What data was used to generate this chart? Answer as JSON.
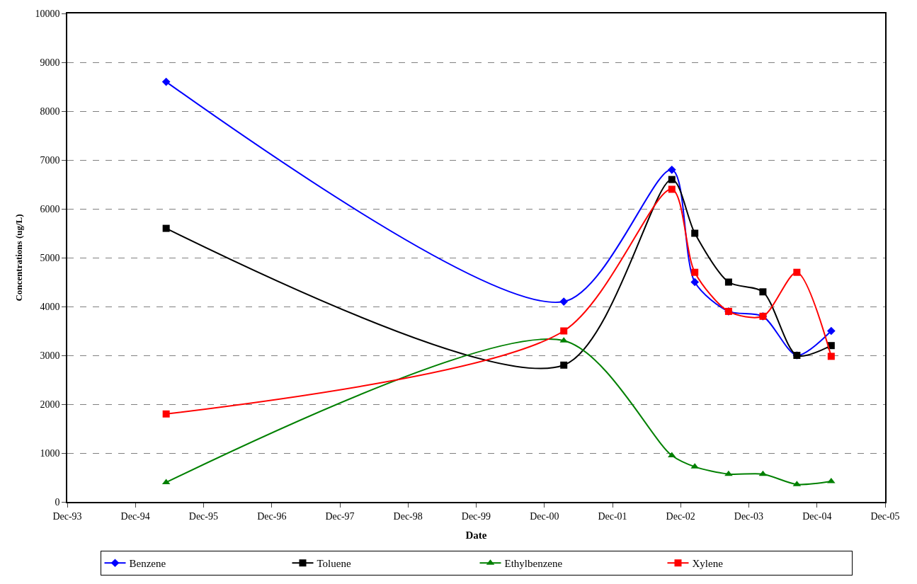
{
  "chart_data": {
    "type": "line",
    "xlabel": "Date",
    "ylabel": "Concentrations (ug/L)",
    "x": [
      "1995-05-15",
      "2001-03-15",
      "2002-10-15",
      "2003-02-15",
      "2003-08-15",
      "2004-02-15",
      "2004-08-15",
      "2005-02-15"
    ],
    "series": [
      {
        "name": "Benzene",
        "color": "#0000ff",
        "marker": "diamond",
        "values": [
          8600,
          4100,
          6800,
          4500,
          3900,
          3800,
          3000,
          3500
        ]
      },
      {
        "name": "Toluene",
        "color": "#000000",
        "marker": "square",
        "values": [
          5600,
          2800,
          6600,
          5500,
          4500,
          4300,
          3000,
          3200
        ]
      },
      {
        "name": "Ethylbenzene",
        "color": "#008000",
        "marker": "triangle",
        "values": [
          400,
          3300,
          950,
          720,
          570,
          570,
          360,
          420
        ]
      },
      {
        "name": "Xylene",
        "color": "#ff0000",
        "marker": "square",
        "values": [
          1800,
          3500,
          6400,
          4700,
          3900,
          3800,
          4700,
          2980
        ]
      }
    ],
    "xlim": [
      "1993-12-01",
      "2005-12-01"
    ],
    "xticks": [
      {
        "value": "1993-12-01",
        "label": "Dec-93"
      },
      {
        "value": "1994-12-01",
        "label": "Dec-94"
      },
      {
        "value": "1995-12-01",
        "label": "Dec-95"
      },
      {
        "value": "1996-12-01",
        "label": "Dec-96"
      },
      {
        "value": "1997-12-01",
        "label": "Dec-97"
      },
      {
        "value": "1998-12-01",
        "label": "Dec-98"
      },
      {
        "value": "1999-12-01",
        "label": "Dec-99"
      },
      {
        "value": "2000-12-01",
        "label": "Dec-00"
      },
      {
        "value": "2001-12-01",
        "label": "Dec-01"
      },
      {
        "value": "2002-12-01",
        "label": "Dec-02"
      },
      {
        "value": "2003-12-01",
        "label": "Dec-03"
      },
      {
        "value": "2004-12-01",
        "label": "Dec-04"
      },
      {
        "value": "2005-12-01",
        "label": "Dec-05"
      }
    ],
    "ylim": [
      0,
      10000
    ],
    "yticks": [
      0,
      1000,
      2000,
      3000,
      4000,
      5000,
      6000,
      7000,
      8000,
      9000,
      10000
    ],
    "grid": "y",
    "legend": "bottom",
    "line_style": "solid"
  }
}
